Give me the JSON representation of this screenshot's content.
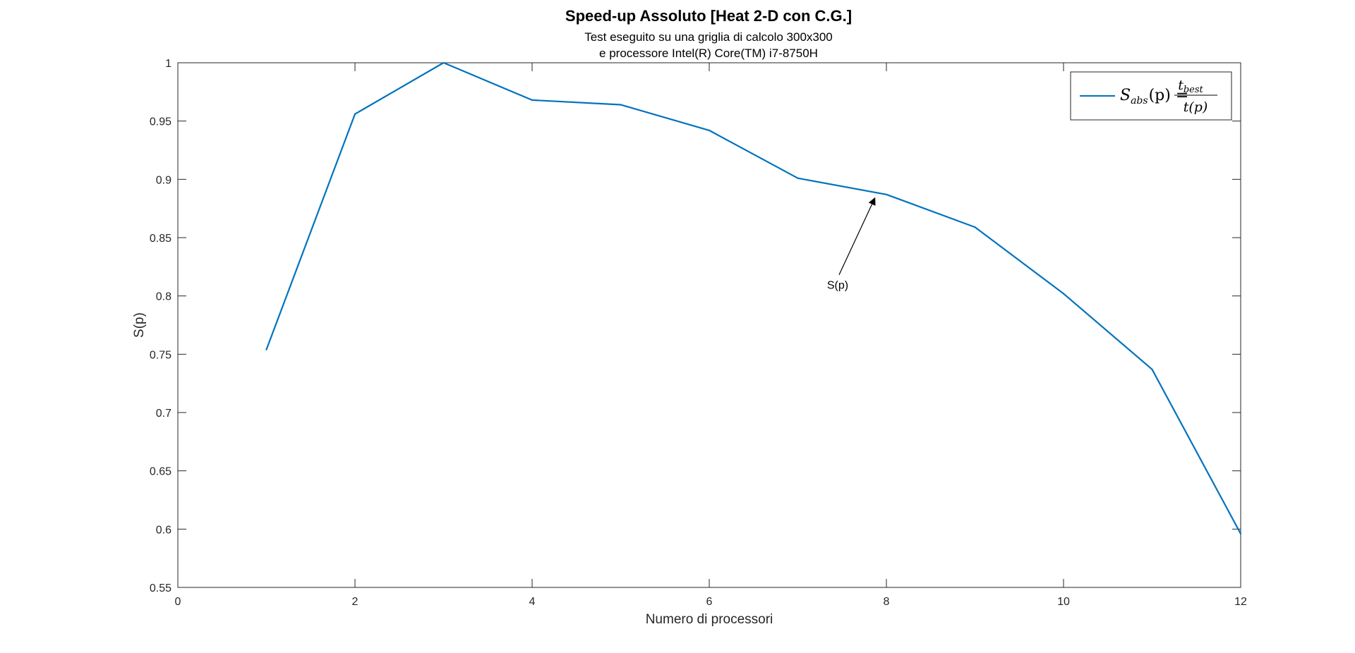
{
  "chart_data": {
    "type": "line",
    "title": "Speed-up Assoluto [Heat 2-D con C.G.]",
    "subtitle_lines": [
      "Test eseguito su una griglia di calcolo 300x300",
      "e processore Intel(R) Core(TM) i7-8750H"
    ],
    "xlabel": "Numero di processori",
    "ylabel": "S(p)",
    "xlim": [
      0,
      12
    ],
    "ylim": [
      0.55,
      1
    ],
    "xticks": [
      0,
      2,
      4,
      6,
      8,
      10,
      12
    ],
    "yticks": [
      0.55,
      0.6,
      0.65,
      0.7,
      0.75,
      0.8,
      0.85,
      0.9,
      0.95,
      1
    ],
    "grid": false,
    "legend_position": "top-right",
    "legend": {
      "lhs_base": "S",
      "lhs_sub": "abs",
      "lhs_arg": "(p) =",
      "num_base": "t",
      "num_sub": "best",
      "den": "t(p)"
    },
    "series": [
      {
        "color": "#0072BD",
        "x": [
          1,
          2,
          3,
          4,
          5,
          6,
          7,
          8,
          9,
          10,
          11,
          12
        ],
        "y": [
          0.754,
          0.956,
          1.0,
          0.968,
          0.964,
          0.942,
          0.901,
          0.887,
          0.859,
          0.802,
          0.737,
          0.596
        ]
      }
    ],
    "annotations": [
      {
        "text": "S(p)",
        "text_x": 7.45,
        "text_y": 0.806,
        "arrow_to_x": 7.87,
        "arrow_to_y": 0.884
      }
    ]
  }
}
